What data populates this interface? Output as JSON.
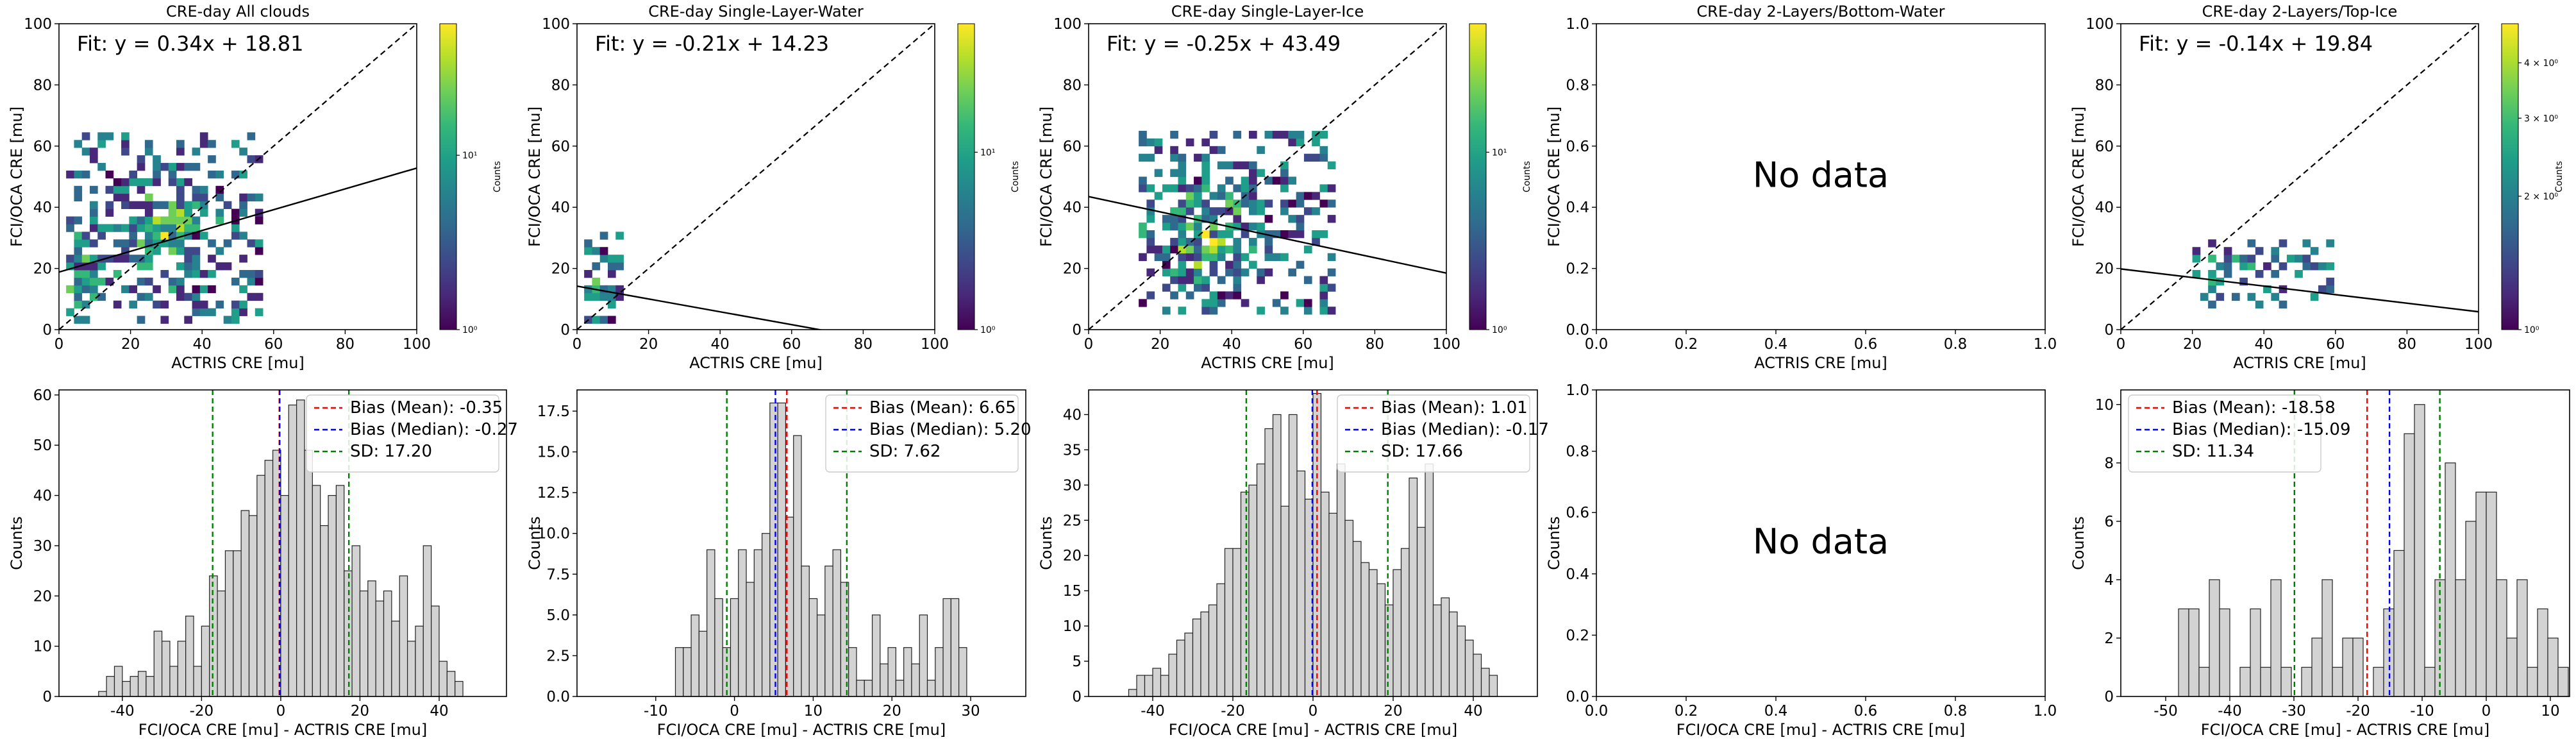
{
  "chart_data": [
    {
      "type": "heatmap",
      "title": "CRE-day All clouds",
      "xlabel": "ACTRIS CRE [mu]",
      "ylabel": "FCI/OCA CRE [mu]",
      "xlim": [
        0,
        100
      ],
      "ylim": [
        0,
        100
      ],
      "xticks": [
        "0",
        "20",
        "40",
        "60",
        "80",
        "100"
      ],
      "yticks": [
        "0",
        "20",
        "40",
        "60",
        "80",
        "100"
      ],
      "fit_label": "Fit: y = 0.34x + 18.81",
      "fit": {
        "slope": 0.34,
        "intercept": 18.81
      },
      "one_to_one": true,
      "colorbar": {
        "label": "Counts",
        "scale": "log",
        "ticks": [
          "10⁰",
          "10¹"
        ]
      },
      "density_region": {
        "x": [
          2,
          55
        ],
        "y": [
          2,
          63
        ],
        "clusters": [
          [
            5,
            15,
            4,
            14
          ],
          [
            30,
            32,
            12,
            14
          ]
        ]
      }
    },
    {
      "type": "heatmap",
      "title": "CRE-day Single-Layer-Water",
      "xlabel": "ACTRIS CRE [mu]",
      "ylabel": "FCI/OCA CRE [mu]",
      "xlim": [
        0,
        100
      ],
      "ylim": [
        0,
        100
      ],
      "xticks": [
        "0",
        "20",
        "40",
        "60",
        "80",
        "100"
      ],
      "yticks": [
        "0",
        "20",
        "40",
        "60",
        "80",
        "100"
      ],
      "fit_label": "Fit: y = -0.21x + 14.23",
      "fit": {
        "slope": -0.21,
        "intercept": 14.23
      },
      "one_to_one": true,
      "colorbar": {
        "label": "Counts",
        "scale": "log",
        "ticks": [
          "10⁰",
          "10¹"
        ]
      },
      "density_region": {
        "x": [
          2,
          12
        ],
        "y": [
          2,
          30
        ],
        "clusters": [
          [
            5,
            12,
            3,
            8
          ]
        ]
      }
    },
    {
      "type": "heatmap",
      "title": "CRE-day Single-Layer-Ice",
      "xlabel": "ACTRIS CRE [mu]",
      "ylabel": "FCI/OCA CRE [mu]",
      "xlim": [
        0,
        100
      ],
      "ylim": [
        0,
        100
      ],
      "xticks": [
        "0",
        "20",
        "40",
        "60",
        "80",
        "100"
      ],
      "yticks": [
        "0",
        "20",
        "40",
        "60",
        "80",
        "100"
      ],
      "fit_label": "Fit: y = -0.25x + 43.49",
      "fit": {
        "slope": -0.25,
        "intercept": 43.49
      },
      "one_to_one": true,
      "colorbar": {
        "label": "Counts",
        "scale": "log",
        "ticks": [
          "10⁰",
          "10¹"
        ]
      },
      "density_region": {
        "x": [
          14,
          68
        ],
        "y": [
          5,
          63
        ],
        "clusters": [
          [
            32,
            30,
            12,
            14
          ]
        ]
      }
    },
    {
      "type": "heatmap",
      "title": "CRE-day 2-Layers/Bottom-Water",
      "xlabel": "ACTRIS CRE [mu]",
      "ylabel": "FCI/OCA CRE [mu]",
      "xlim": [
        0,
        1
      ],
      "ylim": [
        0,
        1
      ],
      "xticks": [
        "0.0",
        "0.2",
        "0.4",
        "0.6",
        "0.8",
        "1.0"
      ],
      "yticks": [
        "0.0",
        "0.2",
        "0.4",
        "0.6",
        "0.8",
        "1.0"
      ],
      "no_data": "No data"
    },
    {
      "type": "heatmap",
      "title": "CRE-day 2-Layers/Top-Ice",
      "xlabel": "ACTRIS CRE [mu]",
      "ylabel": "FCI/OCA CRE [mu]",
      "xlim": [
        0,
        100
      ],
      "ylim": [
        0,
        100
      ],
      "xticks": [
        "0",
        "20",
        "40",
        "60",
        "80",
        "100"
      ],
      "yticks": [
        "0",
        "20",
        "40",
        "60",
        "80",
        "100"
      ],
      "fit_label": "Fit: y = -0.14x + 19.84",
      "fit": {
        "slope": -0.14,
        "intercept": 19.84
      },
      "one_to_one": true,
      "colorbar": {
        "label": "Counts",
        "scale": "log",
        "ticks": [
          "10⁰",
          "2 × 10⁰",
          "3 × 10⁰",
          "4 × 10⁰"
        ],
        "tick_values": [
          1,
          2,
          3,
          4
        ]
      },
      "density_region": {
        "x": [
          20,
          58
        ],
        "y": [
          7,
          28
        ],
        "clusters": [
          [
            28,
            18,
            6,
            4
          ]
        ]
      }
    },
    {
      "type": "bar",
      "subtype": "histogram",
      "xlabel": "FCI/OCA CRE [mu] - ACTRIS CRE [mu]",
      "ylabel": "Counts",
      "xlim": [
        -56,
        57
      ],
      "ylim": [
        0,
        61
      ],
      "xticks": [
        "-40",
        "-20",
        "0",
        "20",
        "40"
      ],
      "yticks": [
        "0",
        "10",
        "20",
        "30",
        "40",
        "50",
        "60"
      ],
      "bins": {
        "start": -46,
        "width": 2
      },
      "values": [
        1,
        4,
        6,
        3,
        4,
        5,
        4,
        13,
        11,
        6,
        11,
        16,
        6,
        14,
        24,
        21,
        29,
        29,
        37,
        36,
        44,
        47,
        49,
        40,
        58,
        59,
        49,
        42,
        34,
        40,
        42,
        25,
        30,
        21,
        23,
        19,
        21,
        15,
        24,
        11,
        14,
        30,
        18,
        7,
        5,
        3
      ],
      "lines": [
        {
          "name": "Bias (Mean)",
          "label": "Bias (Mean): -0.35",
          "x": -0.35,
          "color": "#ff0000"
        },
        {
          "name": "Bias (Median)",
          "label": "Bias (Median): -0.27",
          "x": -0.27,
          "color": "#0000ff"
        },
        {
          "name": "SD",
          "label": "SD: 17.20",
          "x": 17.2,
          "mirror": -17.2,
          "color": "#008000"
        }
      ],
      "legend_position": "top-right"
    },
    {
      "type": "bar",
      "subtype": "histogram",
      "xlabel": "FCI/OCA CRE [mu] - ACTRIS CRE [mu]",
      "ylabel": "Counts",
      "xlim": [
        -20,
        37
      ],
      "ylim": [
        0,
        18.8
      ],
      "xticks": [
        "-10",
        "0",
        "10",
        "20",
        "30"
      ],
      "yticks": [
        "0.0",
        "2.5",
        "5.0",
        "7.5",
        "10.0",
        "12.5",
        "15.0",
        "17.5"
      ],
      "bins": {
        "start": -7.5,
        "width": 1
      },
      "values": [
        3,
        3,
        5,
        4,
        9,
        6,
        3,
        6,
        9,
        7,
        9,
        10,
        18,
        18,
        11,
        16,
        8,
        6,
        5,
        8,
        9,
        7,
        3,
        1,
        1,
        5,
        2,
        3,
        1,
        3,
        2,
        5,
        1,
        3,
        6,
        6,
        3
      ],
      "lines": [
        {
          "name": "Bias (Mean)",
          "label": "Bias (Mean): 6.65",
          "x": 6.65,
          "color": "#ff0000"
        },
        {
          "name": "Bias (Median)",
          "label": "Bias (Median): 5.20",
          "x": 5.2,
          "color": "#0000ff"
        },
        {
          "name": "SD",
          "label": "SD: 7.62",
          "x": 14.27,
          "mirror": -0.97,
          "color": "#008000"
        }
      ],
      "legend_position": "top-right"
    },
    {
      "type": "bar",
      "subtype": "histogram",
      "xlabel": "FCI/OCA CRE [mu] - ACTRIS CRE [mu]",
      "ylabel": "Counts",
      "xlim": [
        -56,
        56
      ],
      "ylim": [
        0,
        43.5
      ],
      "xticks": [
        "-40",
        "-20",
        "0",
        "20",
        "40"
      ],
      "yticks": [
        "0",
        "5",
        "10",
        "15",
        "20",
        "25",
        "30",
        "35",
        "40"
      ],
      "bins": {
        "start": -46,
        "width": 2
      },
      "values": [
        1,
        3,
        3,
        4,
        3,
        6,
        8,
        9,
        11,
        12,
        13,
        16,
        21,
        21,
        29,
        30,
        33,
        38,
        40,
        27,
        40,
        32,
        28,
        43,
        29,
        26,
        33,
        25,
        22,
        19,
        18,
        16,
        13,
        18,
        21,
        31,
        24,
        33,
        13,
        14,
        12,
        10,
        8,
        6,
        4,
        3
      ],
      "lines": [
        {
          "name": "Bias (Mean)",
          "label": "Bias (Mean): 1.01",
          "x": 1.01,
          "color": "#ff0000"
        },
        {
          "name": "Bias (Median)",
          "label": "Bias (Median): -0.17",
          "x": -0.17,
          "color": "#0000ff"
        },
        {
          "name": "SD",
          "label": "SD: 17.66",
          "x": 18.67,
          "mirror": -16.65,
          "color": "#008000"
        }
      ],
      "legend_position": "top-right"
    },
    {
      "type": "bar",
      "subtype": "histogram",
      "xlabel": "FCI/OCA CRE [mu] - ACTRIS CRE [mu]",
      "ylabel": "Counts",
      "xlim": [
        0,
        1
      ],
      "ylim": [
        0,
        1
      ],
      "xticks": [
        "0.0",
        "0.2",
        "0.4",
        "0.6",
        "0.8",
        "1.0"
      ],
      "yticks": [
        "0.0",
        "0.2",
        "0.4",
        "0.6",
        "0.8",
        "1.0"
      ],
      "no_data": "No data"
    },
    {
      "type": "bar",
      "subtype": "histogram",
      "xlabel": "FCI/OCA CRE [mu] - ACTRIS CRE [mu]",
      "ylabel": "Counts",
      "xlim": [
        -57,
        13
      ],
      "ylim": [
        0,
        10.5
      ],
      "xticks": [
        "-50",
        "-40",
        "-30",
        "-20",
        "-10",
        "0",
        "10"
      ],
      "yticks": [
        "0",
        "2",
        "4",
        "6",
        "8",
        "10"
      ],
      "bins": {
        "start": -48,
        "width": 1.6
      },
      "values": [
        3,
        3,
        1,
        4,
        3,
        0,
        1,
        3,
        1,
        4,
        1,
        0,
        1,
        2,
        4,
        1,
        2,
        2,
        0,
        1,
        3,
        5,
        9,
        10,
        1,
        4,
        8,
        4,
        6,
        7,
        7,
        4,
        2,
        4,
        1,
        3,
        2,
        1
      ],
      "lines": [
        {
          "name": "Bias (Mean)",
          "label": "Bias (Mean): -18.58",
          "x": -18.58,
          "color": "#ff0000"
        },
        {
          "name": "Bias (Median)",
          "label": "Bias (Median): -15.09",
          "x": -15.09,
          "color": "#0000ff"
        },
        {
          "name": "SD",
          "label": "SD: 11.34",
          "x": -7.24,
          "mirror": -29.92,
          "color": "#008000"
        }
      ],
      "legend_position": "top-left"
    }
  ]
}
